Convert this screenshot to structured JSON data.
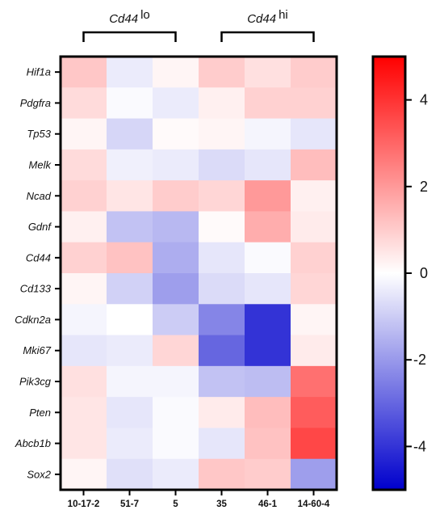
{
  "chart_data": {
    "type": "heatmap",
    "rows": [
      "Hif1a",
      "Pdgfra",
      "Tp53",
      "Melk",
      "Ncad",
      "Gdnf",
      "Cd44",
      "Cd133",
      "Cdkn2a",
      "Mki67",
      "Pik3cg",
      "Pten",
      "Abcb1b",
      "Sox2"
    ],
    "columns": [
      "10-17-2",
      "51-7",
      "5",
      "35",
      "46-1",
      "14-60-4"
    ],
    "values": [
      [
        1.1,
        -0.4,
        0.2,
        1.0,
        0.6,
        1.0
      ],
      [
        0.7,
        -0.1,
        -0.4,
        0.3,
        0.9,
        0.9
      ],
      [
        0.2,
        -0.8,
        0.1,
        0.2,
        -0.2,
        -0.5
      ],
      [
        0.7,
        -0.3,
        -0.4,
        -0.7,
        -0.5,
        1.3
      ],
      [
        0.9,
        0.5,
        1.0,
        0.8,
        2.0,
        0.3
      ],
      [
        0.3,
        -1.2,
        -1.4,
        0.1,
        1.6,
        0.4
      ],
      [
        0.9,
        1.2,
        -1.6,
        -0.5,
        -0.1,
        0.9
      ],
      [
        0.2,
        -0.9,
        -1.9,
        -0.7,
        -0.5,
        0.8
      ],
      [
        -0.2,
        0.0,
        -1.0,
        -2.4,
        -4.0,
        0.2
      ],
      [
        -0.5,
        -0.4,
        0.8,
        -3.0,
        -4.0,
        0.4
      ],
      [
        0.6,
        -0.2,
        -0.2,
        -1.2,
        -1.3,
        2.8
      ],
      [
        0.5,
        -0.5,
        -0.1,
        0.4,
        1.3,
        3.2
      ],
      [
        0.5,
        -0.4,
        -0.1,
        -0.5,
        1.2,
        3.6
      ],
      [
        0.2,
        -0.6,
        -0.4,
        1.1,
        1.0,
        -1.9
      ]
    ],
    "colorbar": {
      "min": -5,
      "max": 5,
      "ticks": [
        4,
        2,
        0,
        -2,
        -4
      ],
      "tick_labels": [
        "4",
        "2",
        "0",
        "-2",
        "-4"
      ],
      "colors": {
        "low": "#0000cc",
        "mid": "#ffffff",
        "high": "#ff0000"
      }
    },
    "groups": [
      {
        "name": "Cd44",
        "suffix": "lo",
        "columns": [
          "10-17-2",
          "51-7",
          "5"
        ]
      },
      {
        "name": "Cd44",
        "suffix": "hi",
        "columns": [
          "35",
          "46-1",
          "14-60-4"
        ]
      }
    ]
  }
}
